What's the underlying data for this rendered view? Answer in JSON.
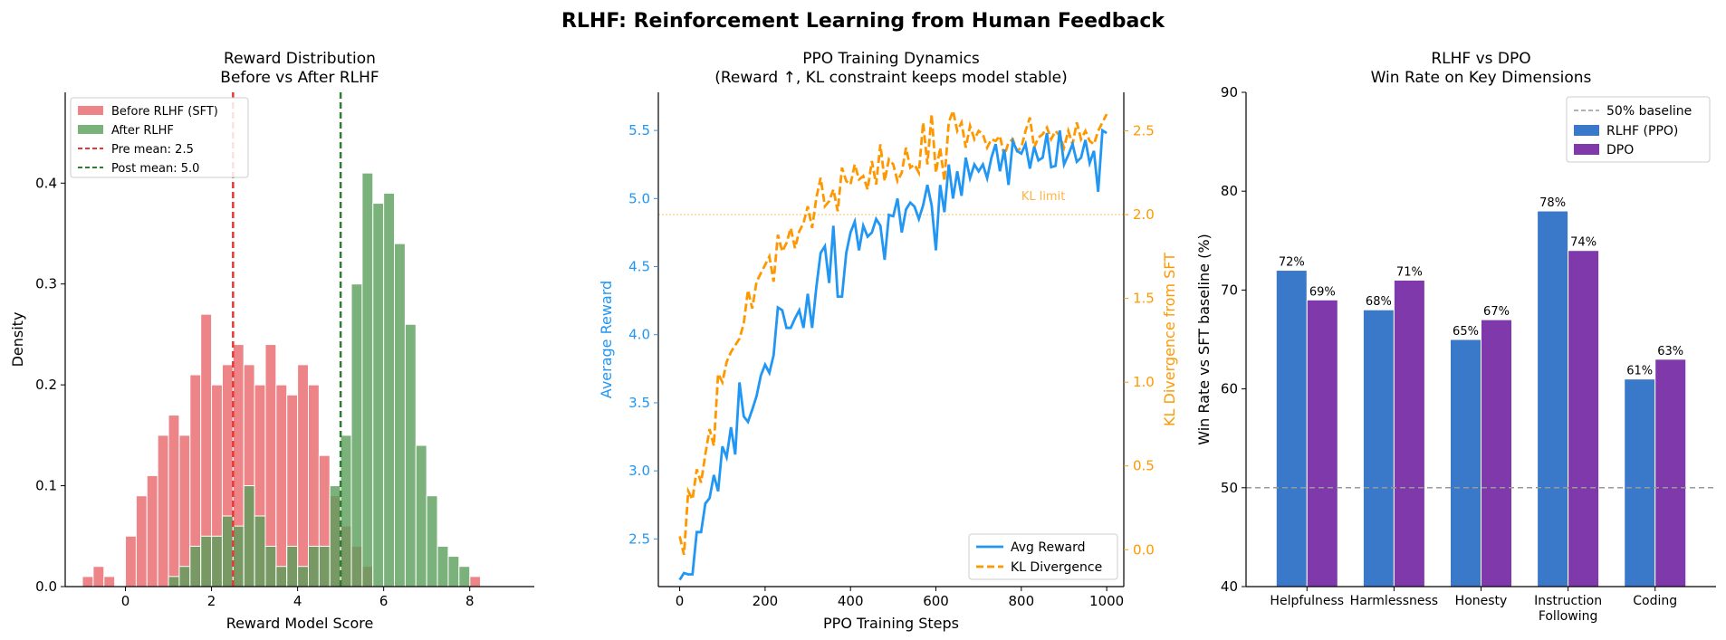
{
  "figure": {
    "title": "RLHF: Reinforcement Learning from Human Feedback"
  },
  "colors": {
    "before": "#e8666a",
    "after": "#5a9e5a",
    "pre_mean": "#e53935",
    "post_mean": "#2e7d32",
    "reward": "#2196f3",
    "kl": "#ff9800",
    "rlhf": "#3a78c9",
    "dpo": "#8039ab",
    "baseline": "#999999"
  },
  "chart_data": [
    {
      "type": "bar",
      "subtype": "histogram",
      "title": "Reward Distribution",
      "subtitle": "Before vs After RLHF",
      "xlabel": "Reward Model Score",
      "ylabel": "Density",
      "xlim": [
        -1.4,
        9.5
      ],
      "ylim": [
        0,
        0.49
      ],
      "xticks": [
        "0",
        "2",
        "4",
        "6",
        "8"
      ],
      "yticks": [
        "0.0",
        "0.1",
        "0.2",
        "0.3",
        "0.4"
      ],
      "bin_width": 0.25,
      "legend_position": "top-left",
      "series": [
        {
          "name": "Before RLHF (SFT)",
          "bin_start": -1.0,
          "values": [
            0.01,
            0.02,
            0.01,
            0.0,
            0.05,
            0.09,
            0.11,
            0.15,
            0.17,
            0.15,
            0.21,
            0.27,
            0.2,
            0.22,
            0.24,
            0.22,
            0.2,
            0.24,
            0.2,
            0.19,
            0.22,
            0.2,
            0.13,
            0.09,
            0.06,
            0.04,
            0.02,
            0.0,
            0.0,
            0.0,
            0.0,
            0.0,
            0.0,
            0.0,
            0.0,
            0.0,
            0.01
          ]
        },
        {
          "name": "After RLHF",
          "bin_start": 1.0,
          "values": [
            0.01,
            0.02,
            0.04,
            0.05,
            0.05,
            0.07,
            0.06,
            0.1,
            0.07,
            0.04,
            0.02,
            0.04,
            0.02,
            0.04,
            0.04,
            0.1,
            0.15,
            0.3,
            0.41,
            0.38,
            0.39,
            0.34,
            0.26,
            0.14,
            0.09,
            0.04,
            0.03,
            0.02
          ]
        }
      ],
      "mean_lines": [
        {
          "label": "Pre mean: 2.5",
          "x": 2.5
        },
        {
          "label": "Post mean: 5.0",
          "x": 5.0
        }
      ]
    },
    {
      "type": "line",
      "title": "PPO Training Dynamics",
      "subtitle": "(Reward ↑, KL constraint keeps model stable)",
      "xlabel": "PPO Training Steps",
      "ylabel_left": "Average Reward",
      "ylabel_right": "KL Divergence from SFT",
      "xlim": [
        -50,
        1040
      ],
      "ylim_left": [
        2.15,
        5.78
      ],
      "ylim_right": [
        -0.22,
        2.73
      ],
      "xticks": [
        "0",
        "200",
        "400",
        "600",
        "800",
        "1000"
      ],
      "yticks_left": [
        "2.5",
        "3.0",
        "3.5",
        "4.0",
        "4.5",
        "5.0",
        "5.5"
      ],
      "yticks_right": [
        "0.0",
        "0.5",
        "1.0",
        "1.5",
        "2.0",
        "2.5"
      ],
      "kl_limit": {
        "label": "KL limit",
        "value": 2.0
      },
      "legend_position": "bottom-right",
      "x": [
        0,
        10,
        20,
        30,
        40,
        50,
        60,
        70,
        80,
        90,
        100,
        110,
        120,
        130,
        140,
        150,
        160,
        170,
        180,
        190,
        200,
        210,
        220,
        230,
        240,
        250,
        260,
        270,
        280,
        290,
        300,
        310,
        320,
        330,
        340,
        350,
        360,
        370,
        380,
        390,
        400,
        410,
        420,
        430,
        440,
        450,
        460,
        470,
        480,
        490,
        500,
        510,
        520,
        530,
        540,
        550,
        560,
        570,
        580,
        590,
        600,
        610,
        620,
        630,
        640,
        650,
        660,
        670,
        680,
        690,
        700,
        710,
        720,
        730,
        740,
        750,
        760,
        770,
        780,
        790,
        800,
        810,
        820,
        830,
        840,
        850,
        860,
        870,
        880,
        890,
        900,
        910,
        920,
        930,
        940,
        950,
        960,
        970,
        980,
        990,
        1000
      ],
      "series": [
        {
          "name": "Avg Reward",
          "axis": "left",
          "style": "solid",
          "values": [
            2.2,
            2.25,
            2.24,
            2.24,
            2.55,
            2.55,
            2.76,
            2.8,
            2.97,
            2.85,
            3.18,
            3.1,
            3.32,
            3.12,
            3.65,
            3.4,
            3.36,
            3.45,
            3.55,
            3.7,
            3.78,
            3.72,
            3.85,
            4.2,
            4.18,
            4.05,
            4.05,
            4.12,
            4.18,
            4.05,
            4.3,
            4.05,
            4.35,
            4.6,
            4.65,
            4.38,
            4.8,
            4.28,
            4.28,
            4.6,
            4.75,
            4.83,
            4.62,
            4.8,
            4.72,
            4.75,
            4.85,
            4.8,
            4.55,
            4.88,
            4.87,
            5.0,
            4.75,
            4.92,
            4.97,
            4.94,
            4.85,
            4.95,
            5.1,
            4.95,
            4.62,
            5.1,
            4.9,
            5.25,
            5.0,
            5.2,
            5.02,
            5.3,
            5.15,
            5.25,
            5.2,
            5.25,
            5.15,
            5.3,
            5.4,
            5.2,
            5.36,
            5.1,
            5.42,
            5.35,
            5.33,
            5.4,
            5.22,
            5.38,
            5.28,
            5.3,
            5.48,
            5.23,
            5.24,
            5.5,
            5.25,
            5.32,
            5.4,
            5.27,
            5.3,
            5.43,
            5.26,
            5.35,
            5.05,
            5.5,
            5.48
          ]
        },
        {
          "name": "KL Divergence",
          "axis": "right",
          "style": "dashed",
          "values": [
            0.08,
            -0.03,
            0.35,
            0.3,
            0.48,
            0.4,
            0.57,
            0.72,
            0.62,
            1.05,
            1.0,
            1.12,
            1.18,
            1.22,
            1.26,
            1.35,
            1.55,
            1.44,
            1.6,
            1.65,
            1.7,
            1.75,
            1.6,
            1.88,
            1.78,
            1.83,
            1.92,
            1.8,
            1.9,
            1.95,
            2.05,
            1.92,
            2.1,
            2.22,
            2.05,
            2.08,
            2.15,
            2.02,
            2.28,
            2.2,
            2.18,
            2.3,
            2.21,
            2.23,
            2.15,
            2.32,
            2.18,
            2.42,
            2.2,
            2.33,
            2.3,
            2.2,
            2.25,
            2.4,
            2.28,
            2.3,
            2.25,
            2.55,
            2.3,
            2.6,
            2.25,
            2.4,
            2.2,
            2.55,
            2.62,
            2.5,
            2.55,
            2.4,
            2.53,
            2.45,
            2.5,
            2.48,
            2.4,
            2.45,
            2.44,
            2.47,
            2.35,
            2.43,
            2.45,
            2.38,
            2.4,
            2.5,
            2.58,
            2.4,
            2.46,
            2.48,
            2.52,
            2.45,
            2.5,
            2.47,
            2.4,
            2.5,
            2.42,
            2.55,
            2.45,
            2.5,
            2.44,
            2.42,
            2.5,
            2.55,
            2.6
          ]
        }
      ]
    },
    {
      "type": "bar",
      "title": "RLHF vs DPO",
      "subtitle": "Win Rate on Key Dimensions",
      "xlabel": "",
      "ylabel": "Win Rate vs SFT baseline (%)",
      "ylim": [
        40,
        90
      ],
      "yticks": [
        "40",
        "50",
        "60",
        "70",
        "80",
        "90"
      ],
      "categories": [
        [
          "Helpfulness"
        ],
        [
          "Harmlessness"
        ],
        [
          "Honesty"
        ],
        [
          "Instruction",
          "Following"
        ],
        [
          "Coding"
        ]
      ],
      "series": [
        {
          "name": "RLHF (PPO)",
          "values": [
            72,
            68,
            65,
            78,
            61
          ],
          "labels": [
            "72%",
            "68%",
            "65%",
            "78%",
            "61%"
          ]
        },
        {
          "name": "DPO",
          "values": [
            69,
            71,
            67,
            74,
            63
          ],
          "labels": [
            "69%",
            "71%",
            "67%",
            "74%",
            "63%"
          ]
        }
      ],
      "baseline": {
        "label": "50% baseline",
        "value": 50
      },
      "legend_position": "top-right"
    }
  ]
}
